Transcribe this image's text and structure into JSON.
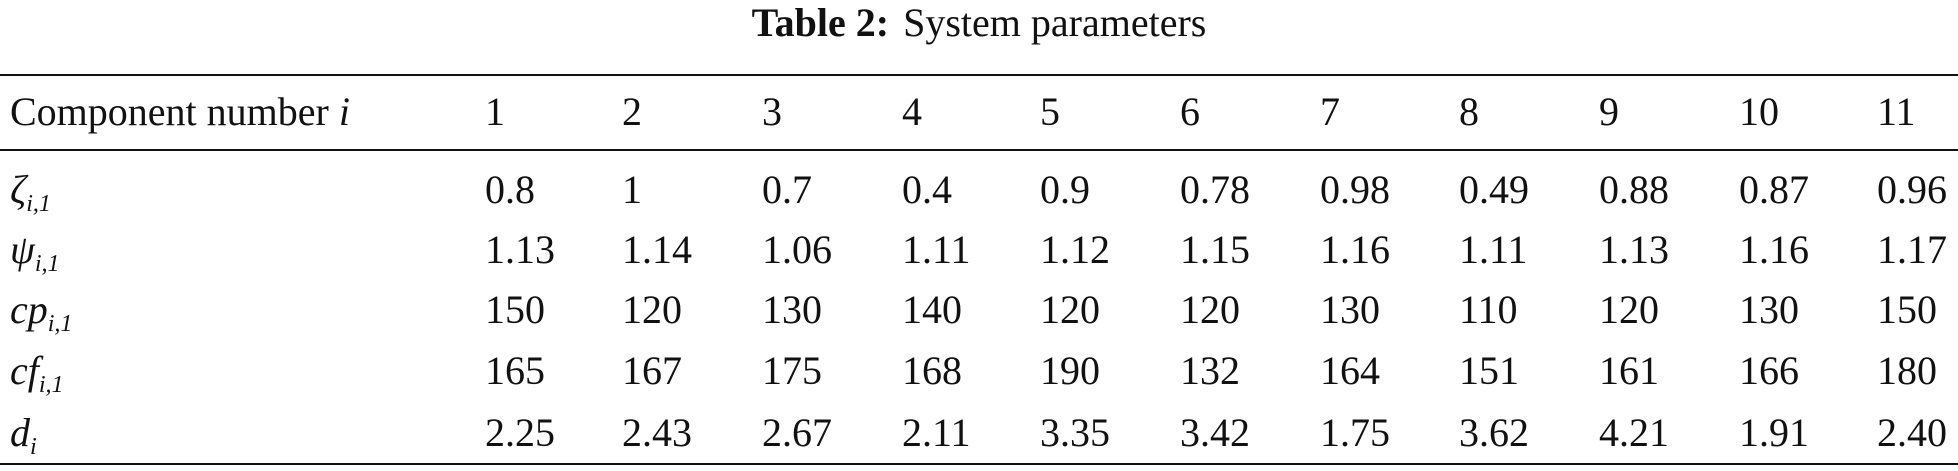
{
  "caption": {
    "label": "Table 2:",
    "text": "System parameters"
  },
  "table": {
    "header": {
      "label": "Component number",
      "variable": "i",
      "columns": [
        "1",
        "2",
        "3",
        "4",
        "5",
        "6",
        "7",
        "8",
        "9",
        "10",
        "11"
      ]
    },
    "rows": [
      {
        "symbol": "ζ",
        "subscript": "i,1",
        "cells": [
          "0.8",
          "1",
          "0.7",
          "0.4",
          "0.9",
          "0.78",
          "0.98",
          "0.49",
          "0.88",
          "0.87",
          "0.96"
        ]
      },
      {
        "symbol": "ψ",
        "subscript": "i,1",
        "cells": [
          "1.13",
          "1.14",
          "1.06",
          "1.11",
          "1.12",
          "1.15",
          "1.16",
          "1.11",
          "1.13",
          "1.16",
          "1.17"
        ]
      },
      {
        "symbol": "cp",
        "subscript": "i,1",
        "cells": [
          "150",
          "120",
          "130",
          "140",
          "120",
          "120",
          "130",
          "110",
          "120",
          "130",
          "150"
        ]
      },
      {
        "symbol": "cf",
        "subscript": "i,1",
        "cells": [
          "165",
          "167",
          "175",
          "168",
          "190",
          "132",
          "164",
          "151",
          "161",
          "166",
          "180"
        ]
      },
      {
        "symbol": "d",
        "subscript": "i",
        "cells": [
          "2.25",
          "2.43",
          "2.67",
          "2.11",
          "3.35",
          "3.42",
          "1.75",
          "3.62",
          "4.21",
          "1.91",
          "2.40"
        ]
      }
    ]
  }
}
